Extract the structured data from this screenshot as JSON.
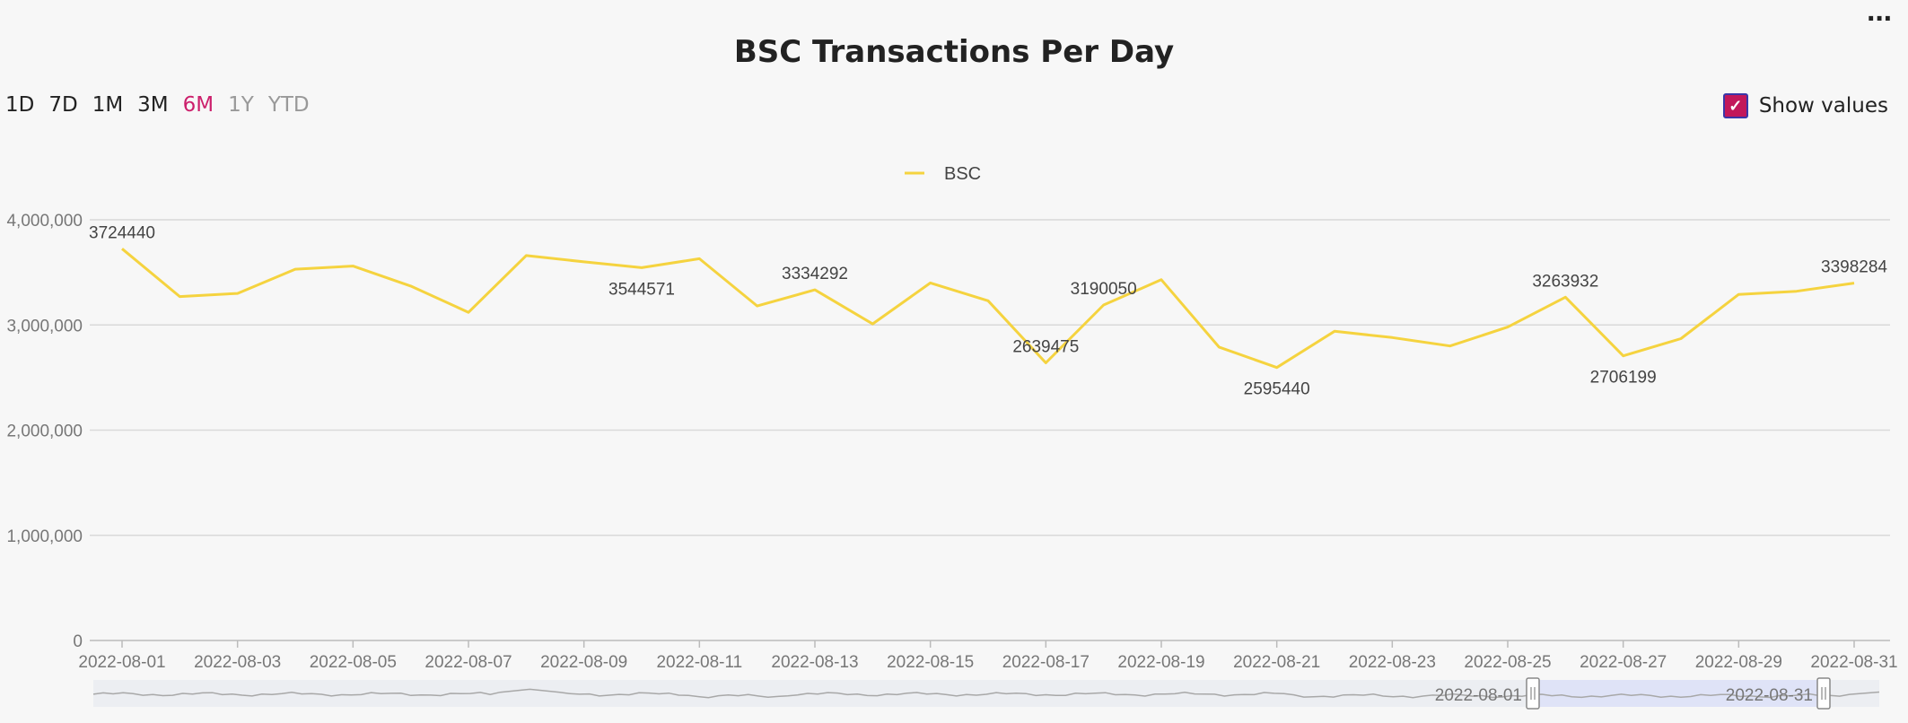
{
  "menu": {
    "label": "···"
  },
  "title": "BSC Transactions Per Day",
  "range_buttons": [
    {
      "label": "1D",
      "state": "normal"
    },
    {
      "label": "7D",
      "state": "normal"
    },
    {
      "label": "1M",
      "state": "normal"
    },
    {
      "label": "3M",
      "state": "normal"
    },
    {
      "label": "6M",
      "state": "active"
    },
    {
      "label": "1Y",
      "state": "disabled"
    },
    {
      "label": "YTD",
      "state": "disabled"
    }
  ],
  "show_values": {
    "label": "Show values",
    "checked": true
  },
  "colors": {
    "line": "#f5d33f",
    "active": "#cc1f6b",
    "grid": "#d9d9d9",
    "navigator_fill": "#dfe3f7"
  },
  "navigator": {
    "start_label": "2022-08-01",
    "end_label": "2022-08-31"
  },
  "chart_data": {
    "type": "line",
    "title": "BSC Transactions Per Day",
    "legend": {
      "position": "top-center"
    },
    "series": [
      {
        "name": "BSC",
        "x": [
          "2022-08-01",
          "2022-08-02",
          "2022-08-03",
          "2022-08-04",
          "2022-08-05",
          "2022-08-06",
          "2022-08-07",
          "2022-08-08",
          "2022-08-09",
          "2022-08-10",
          "2022-08-11",
          "2022-08-12",
          "2022-08-13",
          "2022-08-14",
          "2022-08-15",
          "2022-08-16",
          "2022-08-17",
          "2022-08-18",
          "2022-08-19",
          "2022-08-20",
          "2022-08-21",
          "2022-08-22",
          "2022-08-23",
          "2022-08-24",
          "2022-08-25",
          "2022-08-26",
          "2022-08-27",
          "2022-08-28",
          "2022-08-29",
          "2022-08-30",
          "2022-08-31"
        ],
        "values": [
          3724440,
          3270000,
          3300000,
          3530000,
          3560000,
          3370000,
          3120000,
          3660000,
          3600000,
          3544571,
          3630000,
          3180000,
          3334292,
          3010000,
          3400000,
          3230000,
          2639475,
          3190050,
          3430000,
          2790000,
          2595440,
          2940000,
          2880000,
          2800000,
          2980000,
          3263932,
          2706199,
          2870000,
          3290000,
          3320000,
          3398284
        ]
      }
    ],
    "value_labels": [
      {
        "date": "2022-08-01",
        "text": "3724440",
        "pos": "above"
      },
      {
        "date": "2022-08-10",
        "text": "3544571",
        "pos": "below"
      },
      {
        "date": "2022-08-13",
        "text": "3334292",
        "pos": "above"
      },
      {
        "date": "2022-08-17",
        "text": "2639475",
        "pos": "above"
      },
      {
        "date": "2022-08-18",
        "text": "3190050",
        "pos": "above"
      },
      {
        "date": "2022-08-21",
        "text": "2595440",
        "pos": "below"
      },
      {
        "date": "2022-08-26",
        "text": "3263932",
        "pos": "above"
      },
      {
        "date": "2022-08-27",
        "text": "2706199",
        "pos": "below"
      },
      {
        "date": "2022-08-31",
        "text": "3398284",
        "pos": "above"
      }
    ],
    "ylim": [
      0,
      4000000
    ],
    "y_ticks": [
      "0",
      "1,000,000",
      "2,000,000",
      "3,000,000",
      "4,000,000"
    ],
    "x_tick_labels": [
      "2022-08-01",
      "2022-08-03",
      "2022-08-05",
      "2022-08-07",
      "2022-08-09",
      "2022-08-11",
      "2022-08-13",
      "2022-08-15",
      "2022-08-17",
      "2022-08-19",
      "2022-08-21",
      "2022-08-23",
      "2022-08-25",
      "2022-08-27",
      "2022-08-29",
      "2022-08-31"
    ],
    "grid": true
  }
}
